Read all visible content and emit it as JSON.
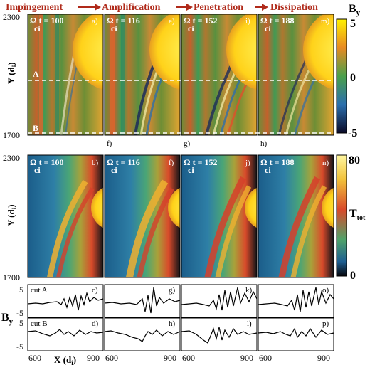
{
  "phases": [
    "Impingement",
    "Amplification",
    "Penetration",
    "Dissipation"
  ],
  "times": [
    "100",
    "116",
    "152",
    "188"
  ],
  "omega_symbol": "Ω",
  "omega_sub": "ci",
  "time_suffix": "t =",
  "top_row": {
    "panel_ids": [
      "a)",
      "e)",
      "i)",
      "m)"
    ],
    "below_ids": [
      "f)",
      "g)",
      "h)"
    ],
    "y_ticks": [
      "2300",
      "1700"
    ],
    "cut_labels": [
      "A",
      "B"
    ],
    "colorbar": {
      "symbol": "B",
      "sub": "y",
      "ticks": [
        "5",
        "0",
        "-5"
      ]
    }
  },
  "mid_row": {
    "panel_ids": [
      "b)",
      "f)",
      "j)",
      "n)"
    ],
    "y_ticks": [
      "2300",
      "1700"
    ],
    "colorbar": {
      "symbol": "T",
      "sub": "tot",
      "ticks": [
        "80",
        "0"
      ]
    }
  },
  "y_axis": {
    "symbol": "Y",
    "unit": "(d",
    "unit_sub": "i",
    "close": ")"
  },
  "cuts": {
    "row_A": {
      "label": "cut A",
      "panel_ids": [
        "c)",
        "g)",
        "k)",
        "o)"
      ]
    },
    "row_B": {
      "label": "cut B",
      "panel_ids": [
        "d)",
        "h)",
        "l)",
        "p)"
      ]
    },
    "y_ticks": [
      "5",
      "-5",
      "5",
      "-5"
    ],
    "y_symbol": "B",
    "y_sub": "y"
  },
  "x_axis": {
    "ticks": [
      "600",
      "900"
    ],
    "symbol": "X",
    "unit": "(d",
    "unit_sub": "i",
    "close": ")"
  }
}
